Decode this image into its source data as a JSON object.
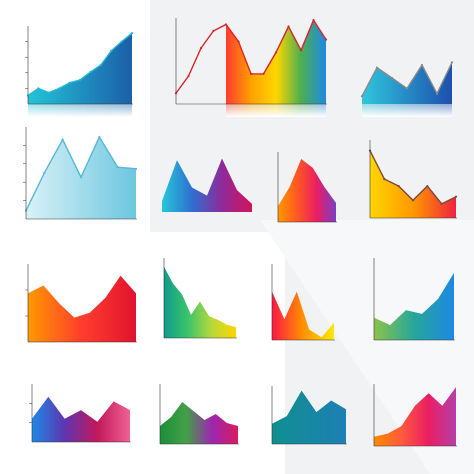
{
  "colors": {
    "background": "#ffffff",
    "panel_shade": "#f1f2f4",
    "axis": "#333333",
    "caption": "#555555"
  },
  "chart_data": [
    {
      "type": "area",
      "gradient": [
        "#23c4d6",
        "#1b5fa8"
      ],
      "line": "#27b8d8",
      "axes": true,
      "reflection": true,
      "x": [
        0,
        1,
        2,
        3,
        4,
        5,
        6,
        7,
        8,
        9,
        10
      ],
      "values": [
        12,
        22,
        16,
        22,
        30,
        34,
        45,
        55,
        75,
        88,
        100
      ],
      "ylim": [
        0,
        110
      ],
      "yticks": [
        "",
        "",
        "",
        ""
      ],
      "caption": ""
    },
    {
      "type": "area",
      "gradient": [
        "#ff3b30",
        "#ffa000",
        "#ffd600",
        "#4caf50",
        "#1e88e5"
      ],
      "line": "#d9252b",
      "axes": true,
      "reflection": true,
      "x": [
        0,
        1,
        2,
        3,
        4,
        5,
        6,
        7,
        8,
        9,
        10,
        11,
        12
      ],
      "values": [
        10,
        26,
        52,
        68,
        74,
        58,
        28,
        28,
        48,
        72,
        50,
        78,
        60
      ],
      "fill_from": 4,
      "ylim": [
        0,
        80
      ],
      "yticks": [],
      "caption": ""
    },
    {
      "type": "area",
      "gradient": [
        "#2fc6dd",
        "#1d4fae"
      ],
      "line": "#8a8a8a",
      "axes": false,
      "reflection": true,
      "x": [
        0,
        1,
        2,
        3,
        4,
        5,
        6
      ],
      "values": [
        15,
        70,
        50,
        30,
        75,
        20,
        80
      ],
      "ylim": [
        0,
        100
      ],
      "yticks": [],
      "caption": ""
    },
    {
      "type": "area",
      "gradient": [
        "#d9f1f7",
        "#6cc7df"
      ],
      "line": "#5ab8d6",
      "axes": true,
      "reflection": false,
      "x": [
        0,
        1,
        2,
        3,
        4,
        5,
        6
      ],
      "values": [
        10,
        55,
        95,
        50,
        98,
        62,
        60
      ],
      "ylim": [
        0,
        110
      ],
      "yticks": [
        "",
        "",
        "",
        ""
      ],
      "caption": ""
    },
    {
      "type": "area",
      "gradient": [
        "#26c6da",
        "#2f6fd0",
        "#8e2a9a",
        "#d4145a"
      ],
      "line": null,
      "axes": false,
      "reflection": false,
      "x": [
        0,
        1,
        2,
        3,
        4,
        5,
        6
      ],
      "values": [
        20,
        95,
        45,
        30,
        98,
        40,
        15
      ],
      "ylim": [
        0,
        110
      ],
      "yticks": [],
      "caption": ""
    },
    {
      "type": "area",
      "gradient": [
        "#ff9800",
        "#ff5722",
        "#e91e63",
        "#7b3fc4"
      ],
      "line": null,
      "axes": true,
      "reflection": false,
      "x": [
        0,
        1,
        2,
        3,
        4,
        5
      ],
      "values": [
        25,
        55,
        99,
        85,
        55,
        30
      ],
      "ylim": [
        0,
        110
      ],
      "yticks": [],
      "caption": ""
    },
    {
      "type": "area",
      "gradient": [
        "#ffd600",
        "#ff9800",
        "#f0223e"
      ],
      "line": "#7a4b3a",
      "axes": true,
      "reflection": false,
      "x": [
        0,
        1,
        2,
        3,
        4,
        5,
        6
      ],
      "values": [
        95,
        55,
        45,
        25,
        45,
        20,
        30
      ],
      "ylim": [
        0,
        110
      ],
      "yticks": [],
      "caption": ""
    },
    {
      "type": "area",
      "gradient": [
        "#ff9800",
        "#ff3d2e",
        "#e0132f"
      ],
      "line": null,
      "axes": true,
      "reflection": false,
      "x": [
        0,
        1,
        2,
        3,
        4,
        5,
        6,
        7
      ],
      "values": [
        50,
        58,
        40,
        25,
        30,
        45,
        68,
        50
      ],
      "ylim": [
        0,
        80
      ],
      "yticks": [
        "",
        ""
      ],
      "caption": ""
    },
    {
      "type": "area",
      "gradient": [
        "#0f9c8c",
        "#3cc46a",
        "#b8d93a",
        "#ffd400"
      ],
      "line": null,
      "axes": true,
      "reflection": false,
      "x": [
        0,
        1,
        2,
        3,
        4,
        5,
        6,
        7,
        8
      ],
      "values": [
        98,
        75,
        60,
        32,
        50,
        30,
        25,
        18,
        15
      ],
      "ylim": [
        0,
        110
      ],
      "yticks": [],
      "caption": ""
    },
    {
      "type": "area",
      "gradient": [
        "#ff1744",
        "#ff9100",
        "#ffea00"
      ],
      "line": null,
      "axes": true,
      "reflection": false,
      "x": [
        0,
        1,
        2,
        3,
        4,
        5
      ],
      "values": [
        70,
        30,
        70,
        15,
        4,
        25
      ],
      "ylim": [
        0,
        110
      ],
      "yticks": [],
      "caption": ""
    },
    {
      "type": "area",
      "gradient": [
        "#8bc34a",
        "#26a69a",
        "#1e88e5"
      ],
      "line": null,
      "axes": true,
      "reflection": false,
      "x": [
        0,
        1,
        2,
        3,
        4,
        5
      ],
      "values": [
        30,
        20,
        40,
        35,
        55,
        90
      ],
      "ylim": [
        0,
        110
      ],
      "yticks": [],
      "caption": ""
    },
    {
      "type": "area",
      "gradient": [
        "#1e88e5",
        "#5e35b1",
        "#c2185b",
        "#f06292"
      ],
      "line": null,
      "axes": true,
      "reflection": false,
      "x": [
        0,
        1,
        2,
        3,
        4,
        5,
        6
      ],
      "values": [
        40,
        78,
        40,
        55,
        35,
        70,
        55
      ],
      "ylim": [
        0,
        100
      ],
      "yticks": [
        "",
        ""
      ],
      "caption": ""
    },
    {
      "type": "area",
      "gradient": [
        "#1b8e3a",
        "#43a047",
        "#9c27b0",
        "#d81b60"
      ],
      "line": null,
      "axes": true,
      "reflection": false,
      "x": [
        0,
        1,
        2,
        3,
        4,
        5,
        6,
        7
      ],
      "values": [
        30,
        45,
        70,
        55,
        40,
        50,
        35,
        30
      ],
      "ylim": [
        0,
        100
      ],
      "yticks": [],
      "caption": ""
    },
    {
      "type": "area",
      "gradient": [
        "#0f8f8f",
        "#1e7fb5"
      ],
      "line": null,
      "axes": true,
      "reflection": false,
      "x": [
        0,
        1,
        2,
        3,
        4,
        5
      ],
      "values": [
        35,
        48,
        92,
        55,
        75,
        60
      ],
      "ylim": [
        0,
        100
      ],
      "yticks": [],
      "caption": ""
    },
    {
      "type": "area",
      "gradient": [
        "#ff8a00",
        "#ff5a3c",
        "#e91e63",
        "#b53fa8"
      ],
      "line": null,
      "axes": true,
      "reflection": false,
      "x": [
        0,
        1,
        2,
        3,
        4,
        5,
        6
      ],
      "values": [
        15,
        20,
        32,
        65,
        85,
        65,
        95
      ],
      "ylim": [
        0,
        100
      ],
      "yticks": [],
      "caption": ""
    }
  ]
}
